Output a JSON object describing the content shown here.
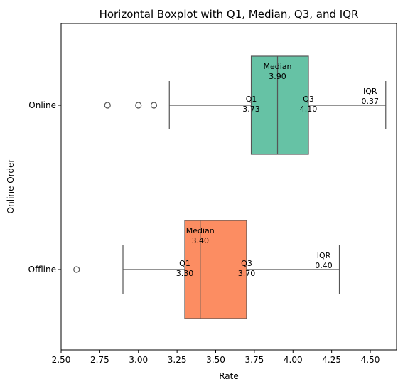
{
  "chart_data": {
    "type": "boxplot",
    "orientation": "horizontal",
    "title": "Horizontal Boxplot with Q1, Median, Q3, and IQR",
    "xlabel": "Rate",
    "ylabel": "Online Order",
    "xlim": [
      2.5,
      4.67
    ],
    "xticks": [
      2.5,
      2.75,
      3.0,
      3.25,
      3.5,
      3.75,
      4.0,
      4.25,
      4.5
    ],
    "xtick_labels": [
      "2.50",
      "2.75",
      "3.00",
      "3.25",
      "3.50",
      "3.75",
      "4.00",
      "4.25",
      "4.50"
    ],
    "grid": false,
    "categories": [
      "Online",
      "Offline"
    ],
    "boxes": [
      {
        "category": "Online",
        "color": "#66c2a5",
        "whisker_low": 3.2,
        "q1": 3.73,
        "median": 3.9,
        "q3": 4.1,
        "whisker_high": 4.6,
        "fliers": [
          2.8,
          3.0,
          3.1
        ],
        "labels": {
          "median": [
            "Median",
            "3.90"
          ],
          "q1": [
            "Q1",
            "3.73"
          ],
          "q3": [
            "Q3",
            "4.10"
          ],
          "iqr": [
            "IQR",
            "0.37"
          ]
        }
      },
      {
        "category": "Offline",
        "color": "#fc8d62",
        "whisker_low": 2.9,
        "q1": 3.3,
        "median": 3.4,
        "q3": 3.7,
        "whisker_high": 4.3,
        "fliers": [
          2.6
        ],
        "labels": {
          "median": [
            "Median",
            "3.40"
          ],
          "q1": [
            "Q1",
            "3.30"
          ],
          "q3": [
            "Q3",
            "3.70"
          ],
          "iqr": [
            "IQR",
            "0.40"
          ]
        }
      }
    ]
  }
}
